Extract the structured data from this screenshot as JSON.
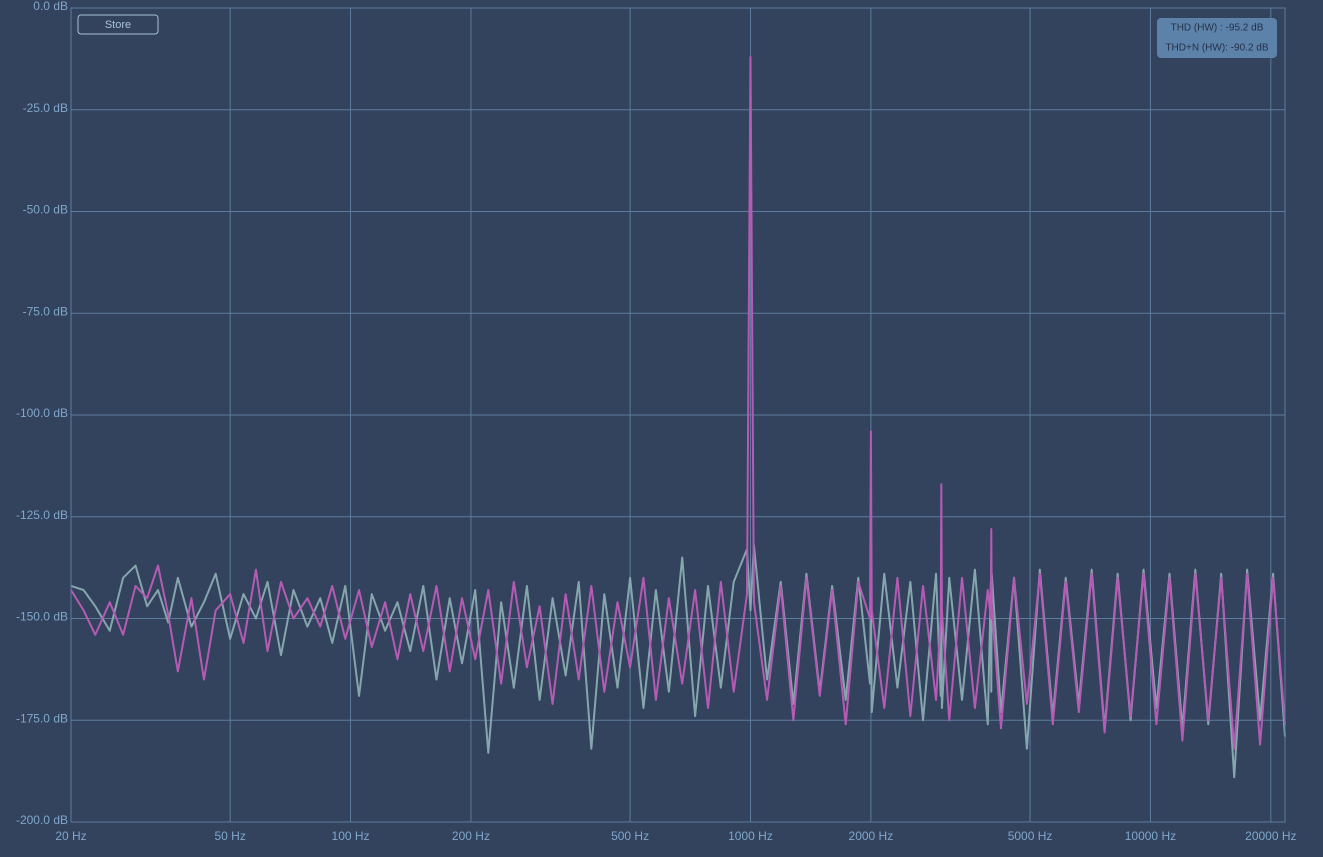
{
  "chart_data": {
    "type": "line",
    "button": "Store",
    "annotations": [
      "THD (HW) : -95.2 dB",
      "THD+N (HW): -90.2 dB"
    ],
    "log_x": true,
    "grid": true,
    "xlim": [
      20,
      21700
    ],
    "ylim": [
      -200,
      0
    ],
    "xticks": [
      {
        "value": 20,
        "label": "20 Hz"
      },
      {
        "value": 50,
        "label": "50 Hz"
      },
      {
        "value": 100,
        "label": "100 Hz"
      },
      {
        "value": 200,
        "label": "200 Hz"
      },
      {
        "value": 500,
        "label": "500 Hz"
      },
      {
        "value": 1000,
        "label": "1000 Hz"
      },
      {
        "value": 2000,
        "label": "2000 Hz"
      },
      {
        "value": 5000,
        "label": "5000 Hz"
      },
      {
        "value": 10000,
        "label": "10000 Hz"
      },
      {
        "value": 20000,
        "label": "20000 Hz"
      }
    ],
    "yticks": [
      {
        "value": 0,
        "label": "0.0 dB"
      },
      {
        "value": -25,
        "label": "-25.0 dB"
      },
      {
        "value": -50,
        "label": "-50.0 dB"
      },
      {
        "value": -75,
        "label": "-75.0 dB"
      },
      {
        "value": -100,
        "label": "-100.0 dB"
      },
      {
        "value": -125,
        "label": "-125.0 dB"
      },
      {
        "value": -150,
        "label": "-150.0 dB"
      },
      {
        "value": -175,
        "label": "-175.0 dB"
      },
      {
        "value": -200,
        "label": "-200.0 dB"
      }
    ],
    "x": [
      20,
      21.5,
      23,
      25,
      27,
      29,
      31,
      33,
      35,
      37,
      40,
      43,
      46,
      50,
      54,
      58,
      62,
      67,
      72,
      78,
      84,
      90,
      97,
      105,
      113,
      122,
      131,
      141,
      152,
      164,
      177,
      190,
      205,
      221,
      238,
      256,
      276,
      297,
      320,
      345,
      372,
      400,
      431,
      465,
      500,
      540,
      580,
      625,
      675,
      727,
      783,
      843,
      908,
      980,
      1000,
      1020,
      1100,
      1190,
      1280,
      1380,
      1490,
      1600,
      1730,
      1860,
      1990,
      2000,
      2010,
      2160,
      2330,
      2510,
      2700,
      2910,
      2990,
      3000,
      3010,
      3140,
      3380,
      3640,
      3920,
      3990,
      4000,
      4010,
      4230,
      4560,
      4910,
      5290,
      5700,
      6140,
      6620,
      7130,
      7680,
      8280,
      8920,
      9610,
      10350,
      11160,
      12020,
      12950,
      13950,
      15030,
      16200,
      17450,
      18800,
      20260,
      21700
    ],
    "series": [
      {
        "color": "#86a6ad",
        "values": [
          -142,
          -143,
          -147,
          -153,
          -140,
          -137,
          -147,
          -143,
          -151,
          -140,
          -152,
          -146,
          -139,
          -155,
          -144,
          -150,
          -141,
          -159,
          -143,
          -152,
          -145,
          -156,
          -142,
          -169,
          -144,
          -153,
          -146,
          -158,
          -142,
          -165,
          -145,
          -161,
          -143,
          -183,
          -146,
          -167,
          -142,
          -170,
          -145,
          -164,
          -141,
          -182,
          -144,
          -167,
          -140,
          -172,
          -143,
          -168,
          -135,
          -174,
          -142,
          -167,
          -141,
          -133,
          -148,
          -132,
          -165,
          -141,
          -171,
          -139,
          -168,
          -142,
          -170,
          -140,
          -166,
          -143,
          -173,
          -139,
          -167,
          -141,
          -175,
          -139,
          -169,
          -142,
          -172,
          -140,
          -170,
          -138,
          -176,
          -141,
          -168,
          -139,
          -173,
          -140,
          -182,
          -138,
          -174,
          -140,
          -171,
          -138,
          -177,
          -139,
          -175,
          -138,
          -172,
          -139,
          -177,
          -138,
          -176,
          -139,
          -189,
          -138,
          -175,
          -139,
          -179
        ]
      },
      {
        "color": "#b45cb4",
        "values": [
          -143,
          -148,
          -154,
          -146,
          -154,
          -142,
          -145,
          -137,
          -149,
          -163,
          -145,
          -165,
          -148,
          -144,
          -156,
          -138,
          -158,
          -141,
          -150,
          -145,
          -152,
          -142,
          -155,
          -143,
          -157,
          -146,
          -160,
          -144,
          -158,
          -142,
          -163,
          -145,
          -160,
          -143,
          -166,
          -141,
          -162,
          -147,
          -171,
          -144,
          -165,
          -142,
          -168,
          -146,
          -162,
          -140,
          -170,
          -145,
          -166,
          -143,
          -172,
          -141,
          -168,
          -144,
          -12,
          -146,
          -170,
          -142,
          -175,
          -140,
          -169,
          -143,
          -176,
          -141,
          -150,
          -104,
          -148,
          -172,
          -140,
          -174,
          -142,
          -170,
          -150,
          -117,
          -148,
          -175,
          -140,
          -172,
          -143,
          -150,
          -128,
          -147,
          -177,
          -140,
          -171,
          -139,
          -176,
          -141,
          -173,
          -139,
          -178,
          -140,
          -174,
          -139,
          -176,
          -140,
          -180,
          -139,
          -175,
          -140,
          -182,
          -139,
          -181,
          -140,
          -176
        ]
      }
    ]
  }
}
